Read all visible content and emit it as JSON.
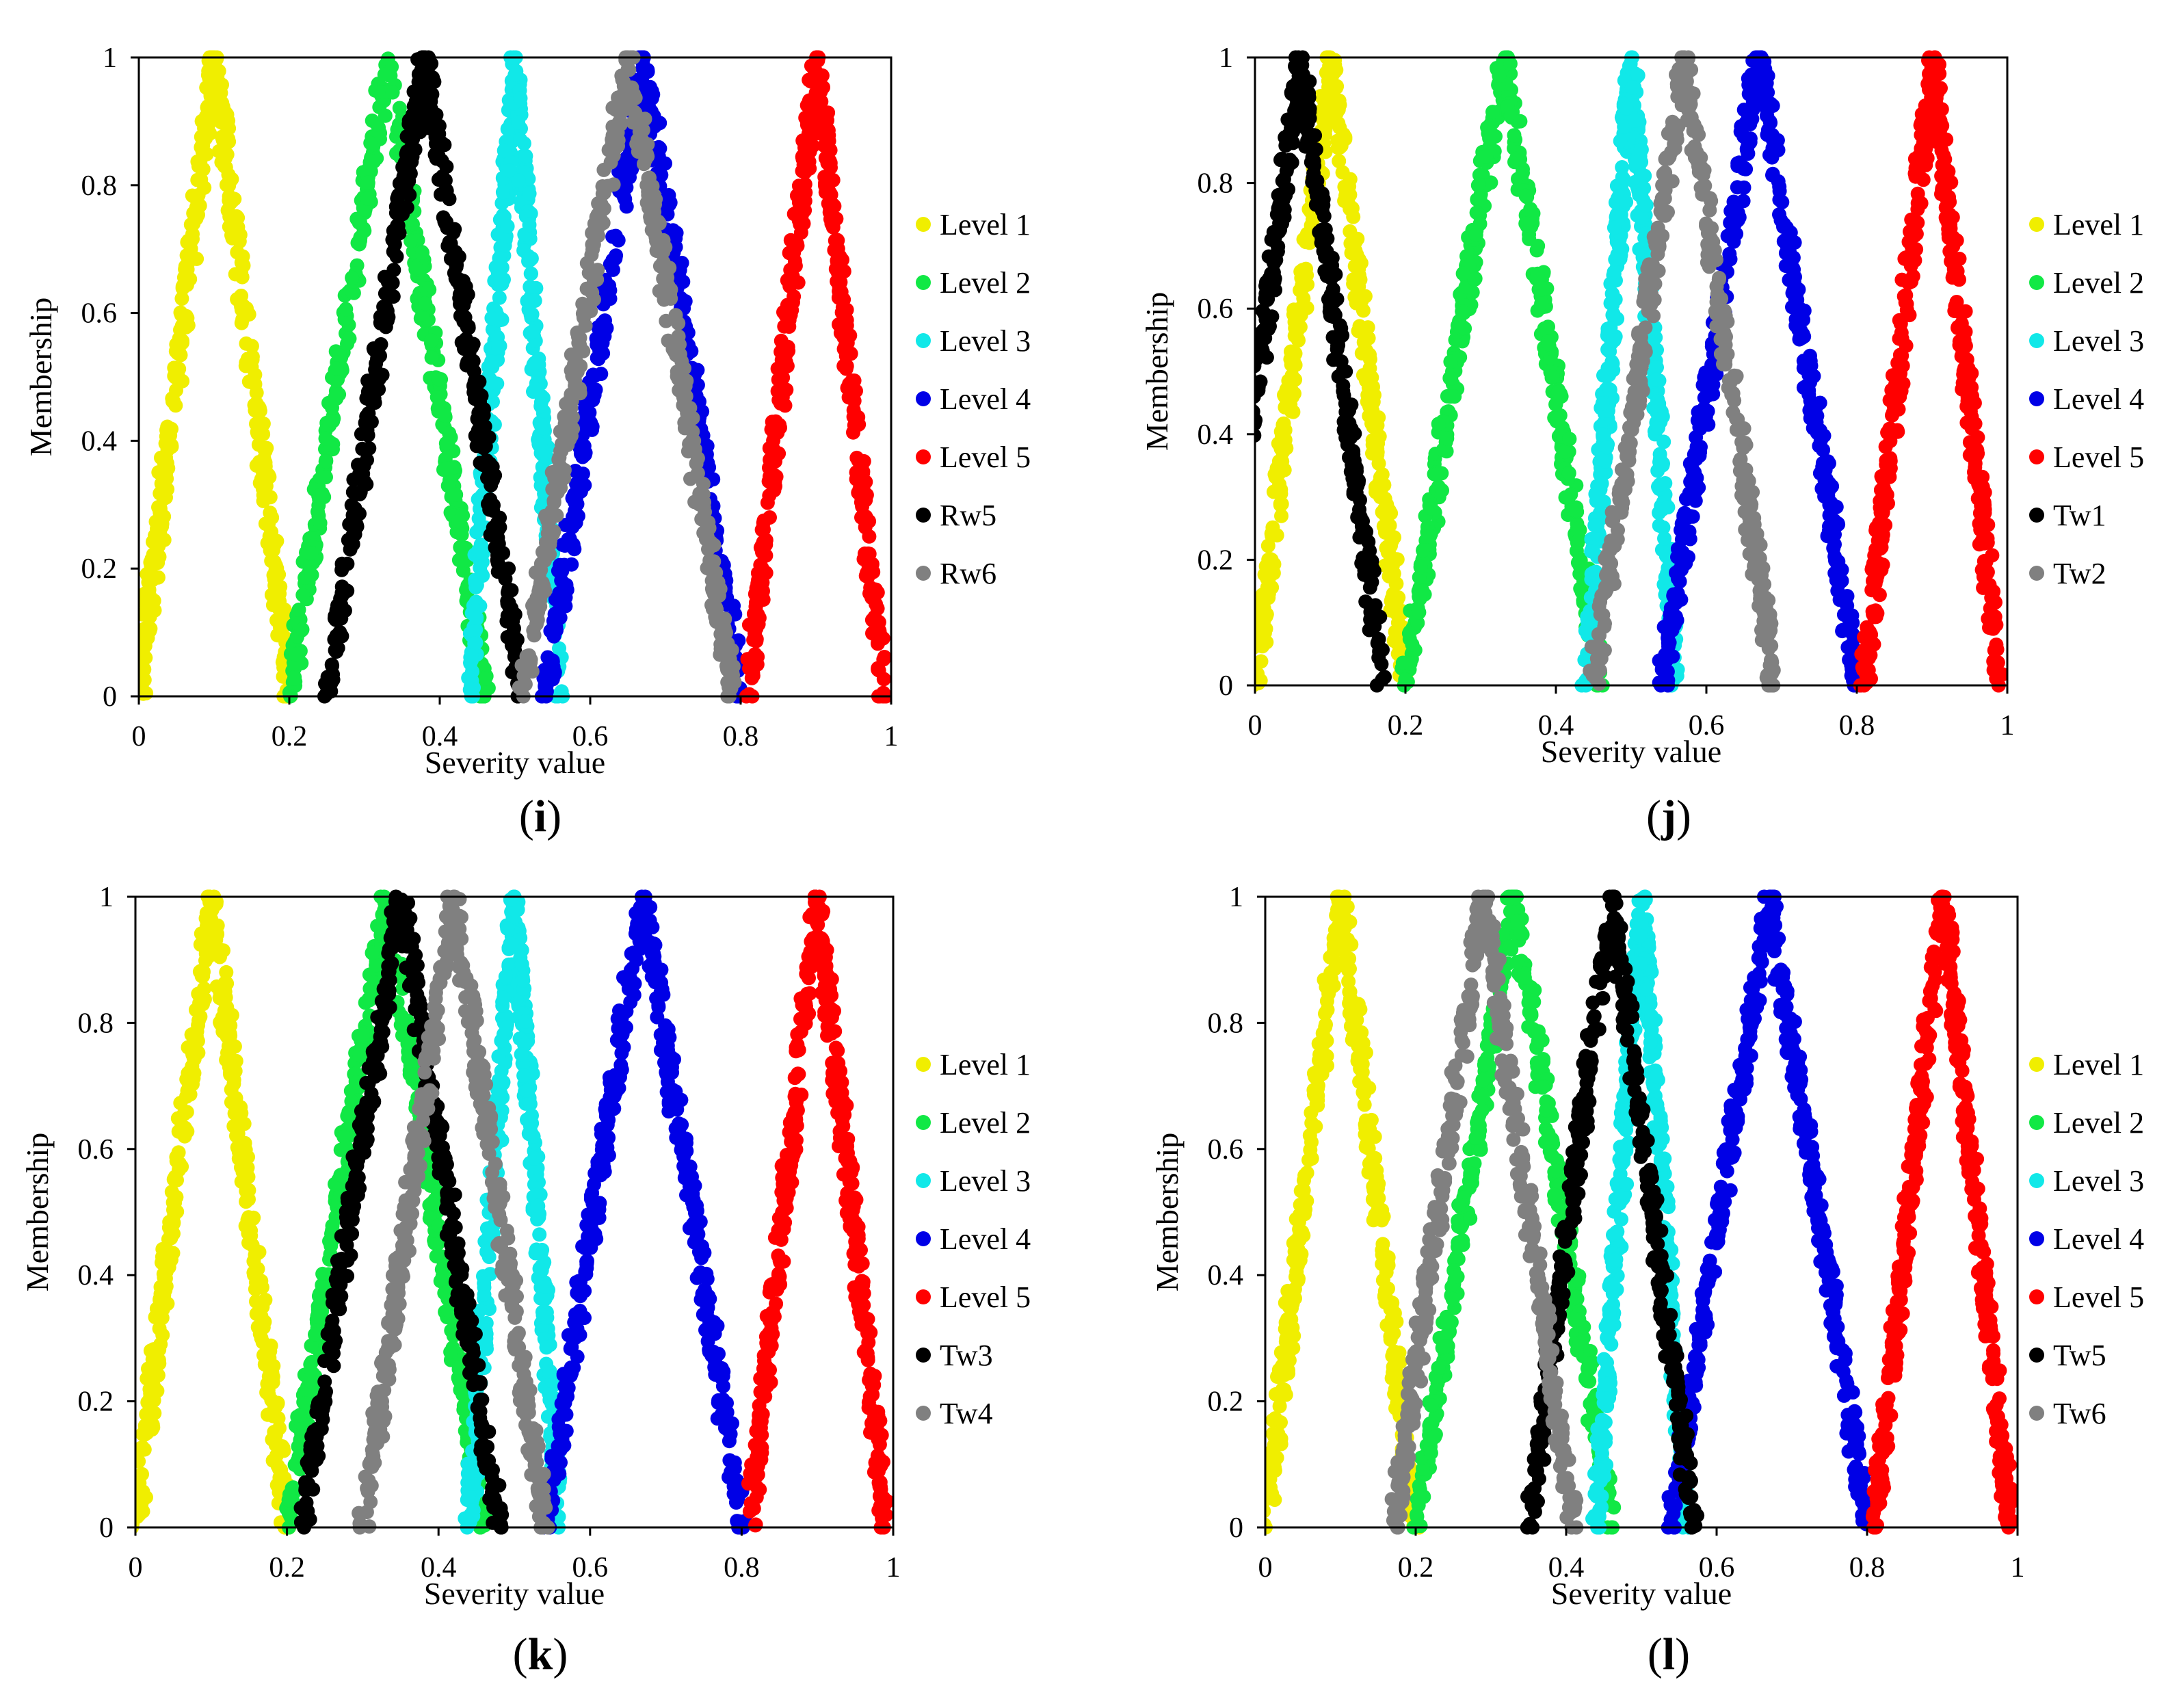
{
  "figure": {
    "panels": [
      "i",
      "j",
      "k",
      "l"
    ]
  },
  "levels": {
    "names": [
      "Level 1",
      "Level 2",
      "Level 3",
      "Level 4",
      "Level 5"
    ],
    "colors": [
      "#f0ee00",
      "#11e845",
      "#11e8e8",
      "#0000e6",
      "#ff0000"
    ],
    "centers": [
      0.1,
      0.33,
      0.5,
      0.67,
      0.9
    ],
    "halfwidths": [
      0.1,
      0.13,
      0.06,
      0.13,
      0.09
    ]
  },
  "chart_data": [
    {
      "type": "scatter",
      "panel_label": "i",
      "title": "",
      "xlabel": "Severity value",
      "ylabel": "Membership",
      "xlim": [
        0,
        1
      ],
      "ylim": [
        0,
        1
      ],
      "xticks": [
        "0",
        "0.2",
        "0.4",
        "0.6",
        "0.8",
        "1"
      ],
      "yticks": [
        "0",
        "0.2",
        "0.4",
        "0.6",
        "0.8",
        "1"
      ],
      "legend_position": "right",
      "series": [
        {
          "name": "Level 1",
          "color": "#f0ee00",
          "peak": 0.1,
          "halfwidth": 0.1
        },
        {
          "name": "Level 2",
          "color": "#11e845",
          "peak": 0.33,
          "halfwidth": 0.13
        },
        {
          "name": "Level 3",
          "color": "#11e8e8",
          "peak": 0.5,
          "halfwidth": 0.06
        },
        {
          "name": "Level 4",
          "color": "#0000e6",
          "peak": 0.67,
          "halfwidth": 0.13
        },
        {
          "name": "Level 5",
          "color": "#ff0000",
          "peak": 0.9,
          "halfwidth": 0.09
        },
        {
          "name": "Rw5",
          "color": "#000000",
          "peak": 0.38,
          "halfwidth": 0.13
        },
        {
          "name": "Rw6",
          "color": "#808080",
          "peak": 0.65,
          "halfwidth": 0.14
        }
      ]
    },
    {
      "type": "scatter",
      "panel_label": "j",
      "title": "",
      "xlabel": "Severity value",
      "ylabel": "Membership",
      "xlim": [
        0,
        1
      ],
      "ylim": [
        0,
        1
      ],
      "xticks": [
        "0",
        "0.2",
        "0.4",
        "0.6",
        "0.8",
        "1"
      ],
      "yticks": [
        "0",
        "0.2",
        "0.4",
        "0.6",
        "0.8",
        "1"
      ],
      "legend_position": "right",
      "series": [
        {
          "name": "Level 1",
          "color": "#f0ee00",
          "peak": 0.1,
          "halfwidth": 0.1
        },
        {
          "name": "Level 2",
          "color": "#11e845",
          "peak": 0.33,
          "halfwidth": 0.13
        },
        {
          "name": "Level 3",
          "color": "#11e8e8",
          "peak": 0.5,
          "halfwidth": 0.06
        },
        {
          "name": "Level 4",
          "color": "#0000e6",
          "peak": 0.67,
          "halfwidth": 0.13
        },
        {
          "name": "Level 5",
          "color": "#ff0000",
          "peak": 0.9,
          "halfwidth": 0.09
        },
        {
          "name": "Tw1",
          "color": "#000000",
          "peak": 0.06,
          "halfwidth": 0.11
        },
        {
          "name": "Tw2",
          "color": "#808080",
          "peak": 0.57,
          "halfwidth": 0.12
        }
      ]
    },
    {
      "type": "scatter",
      "panel_label": "k",
      "title": "",
      "xlabel": "Severity value",
      "ylabel": "Membership",
      "xlim": [
        0,
        1
      ],
      "ylim": [
        0,
        1
      ],
      "xticks": [
        "0",
        "0.2",
        "0.4",
        "0.6",
        "0.8",
        "1"
      ],
      "yticks": [
        "0",
        "0.2",
        "0.4",
        "0.6",
        "0.8",
        "1"
      ],
      "legend_position": "right",
      "series": [
        {
          "name": "Level 1",
          "color": "#f0ee00",
          "peak": 0.1,
          "halfwidth": 0.1
        },
        {
          "name": "Level 2",
          "color": "#11e845",
          "peak": 0.33,
          "halfwidth": 0.13
        },
        {
          "name": "Level 3",
          "color": "#11e8e8",
          "peak": 0.5,
          "halfwidth": 0.06
        },
        {
          "name": "Level 4",
          "color": "#0000e6",
          "peak": 0.67,
          "halfwidth": 0.13
        },
        {
          "name": "Level 5",
          "color": "#ff0000",
          "peak": 0.9,
          "halfwidth": 0.09
        },
        {
          "name": "Tw3",
          "color": "#000000",
          "peak": 0.35,
          "halfwidth": 0.13
        },
        {
          "name": "Tw4",
          "color": "#808080",
          "peak": 0.42,
          "halfwidth": 0.12
        }
      ]
    },
    {
      "type": "scatter",
      "panel_label": "l",
      "title": "",
      "xlabel": "Severity value",
      "ylabel": "Membership",
      "xlim": [
        0,
        1
      ],
      "ylim": [
        0,
        1
      ],
      "xticks": [
        "0",
        "0.2",
        "0.4",
        "0.6",
        "0.8",
        "1"
      ],
      "yticks": [
        "0",
        "0.2",
        "0.4",
        "0.6",
        "0.8",
        "1"
      ],
      "legend_position": "right",
      "series": [
        {
          "name": "Level 1",
          "color": "#f0ee00",
          "peak": 0.1,
          "halfwidth": 0.1
        },
        {
          "name": "Level 2",
          "color": "#11e845",
          "peak": 0.33,
          "halfwidth": 0.13
        },
        {
          "name": "Level 3",
          "color": "#11e8e8",
          "peak": 0.5,
          "halfwidth": 0.06
        },
        {
          "name": "Level 4",
          "color": "#0000e6",
          "peak": 0.67,
          "halfwidth": 0.13
        },
        {
          "name": "Level 5",
          "color": "#ff0000",
          "peak": 0.9,
          "halfwidth": 0.09
        },
        {
          "name": "Tw5",
          "color": "#000000",
          "peak": 0.46,
          "halfwidth": 0.11
        },
        {
          "name": "Tw6",
          "color": "#808080",
          "peak": 0.29,
          "halfwidth": 0.12
        }
      ]
    }
  ]
}
